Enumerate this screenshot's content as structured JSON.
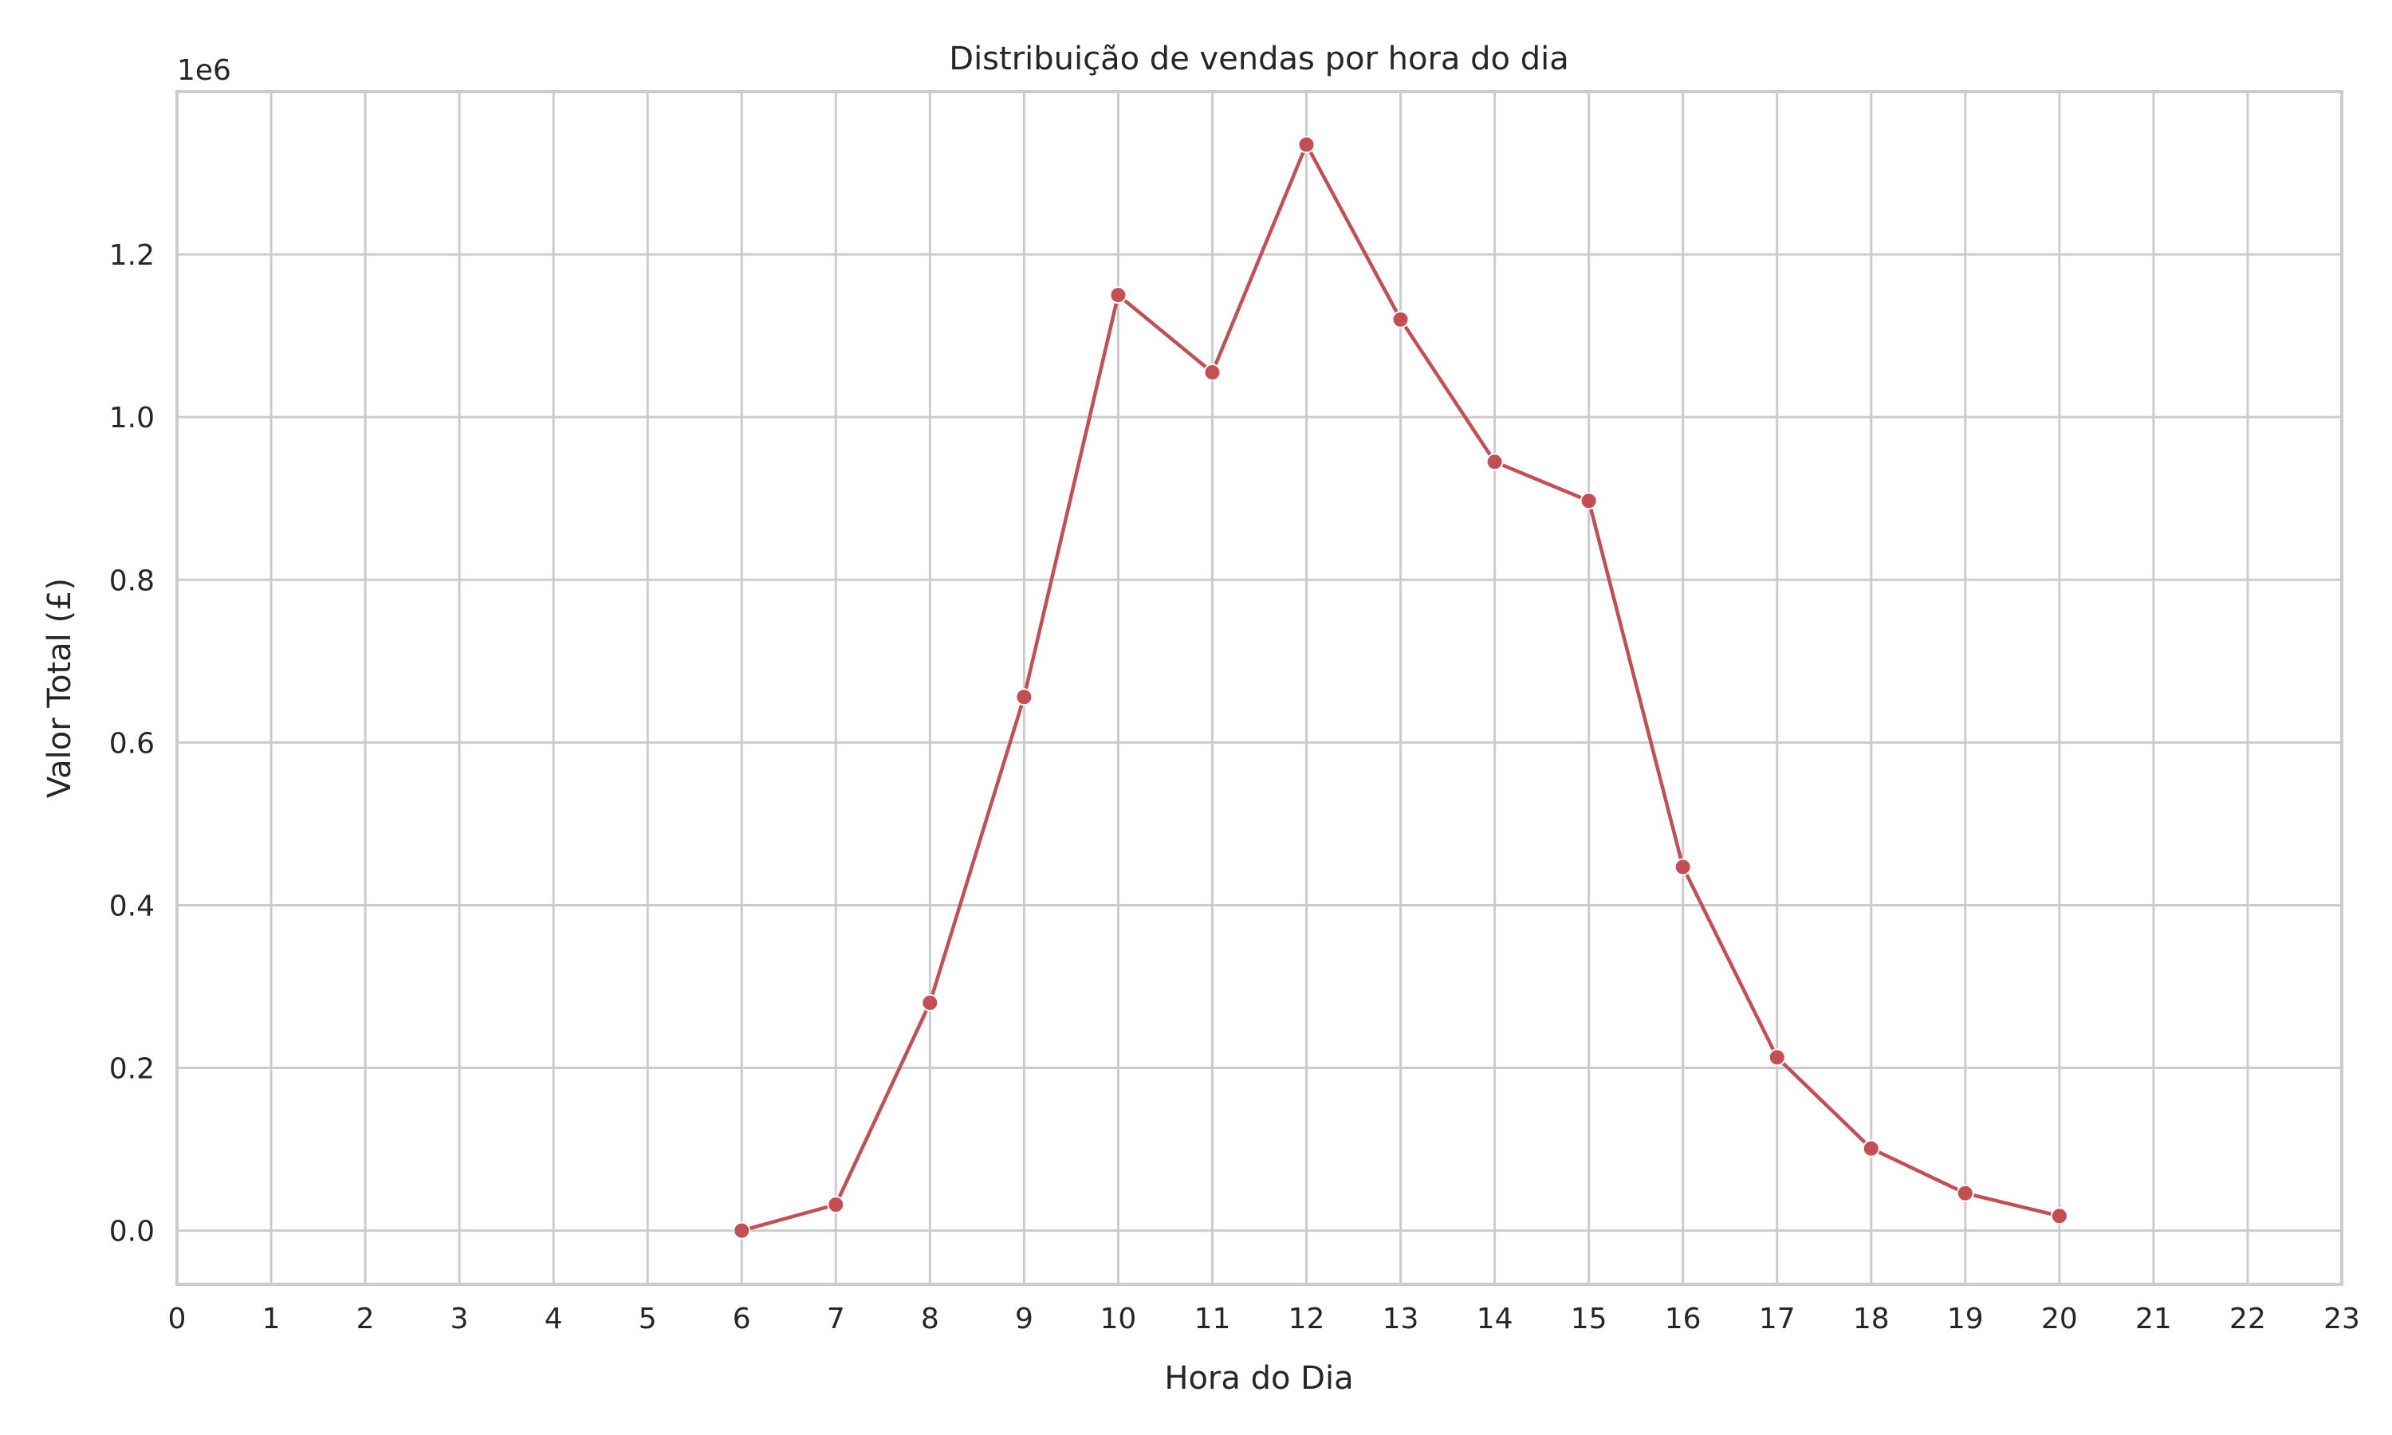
{
  "chart_data": {
    "type": "line",
    "title": "Distribuição de vendas por hora do dia",
    "xlabel": "Hora do Dia",
    "ylabel": "Valor Total (£)",
    "y_offset_label": "1e6",
    "xlim": [
      0,
      23
    ],
    "ylim": [
      -0.066,
      1.4
    ],
    "x_ticks": [
      0,
      1,
      2,
      3,
      4,
      5,
      6,
      7,
      8,
      9,
      10,
      11,
      12,
      13,
      14,
      15,
      16,
      17,
      18,
      19,
      20,
      21,
      22,
      23
    ],
    "y_ticks": [
      0.0,
      0.2,
      0.4,
      0.6,
      0.8,
      1.0,
      1.2
    ],
    "y_tick_labels": [
      "0.0",
      "0.2",
      "0.4",
      "0.6",
      "0.8",
      "1.0",
      "1.2"
    ],
    "grid": true,
    "series": [
      {
        "color": "#c44e52",
        "marker": "circle",
        "x": [
          6,
          7,
          8,
          9,
          10,
          11,
          12,
          13,
          14,
          15,
          16,
          17,
          18,
          19,
          20
        ],
        "y": [
          0.0,
          0.032,
          0.28,
          0.656,
          1.15,
          1.055,
          1.335,
          1.12,
          0.945,
          0.897,
          0.447,
          0.213,
          0.101,
          0.046,
          0.018
        ]
      }
    ]
  }
}
